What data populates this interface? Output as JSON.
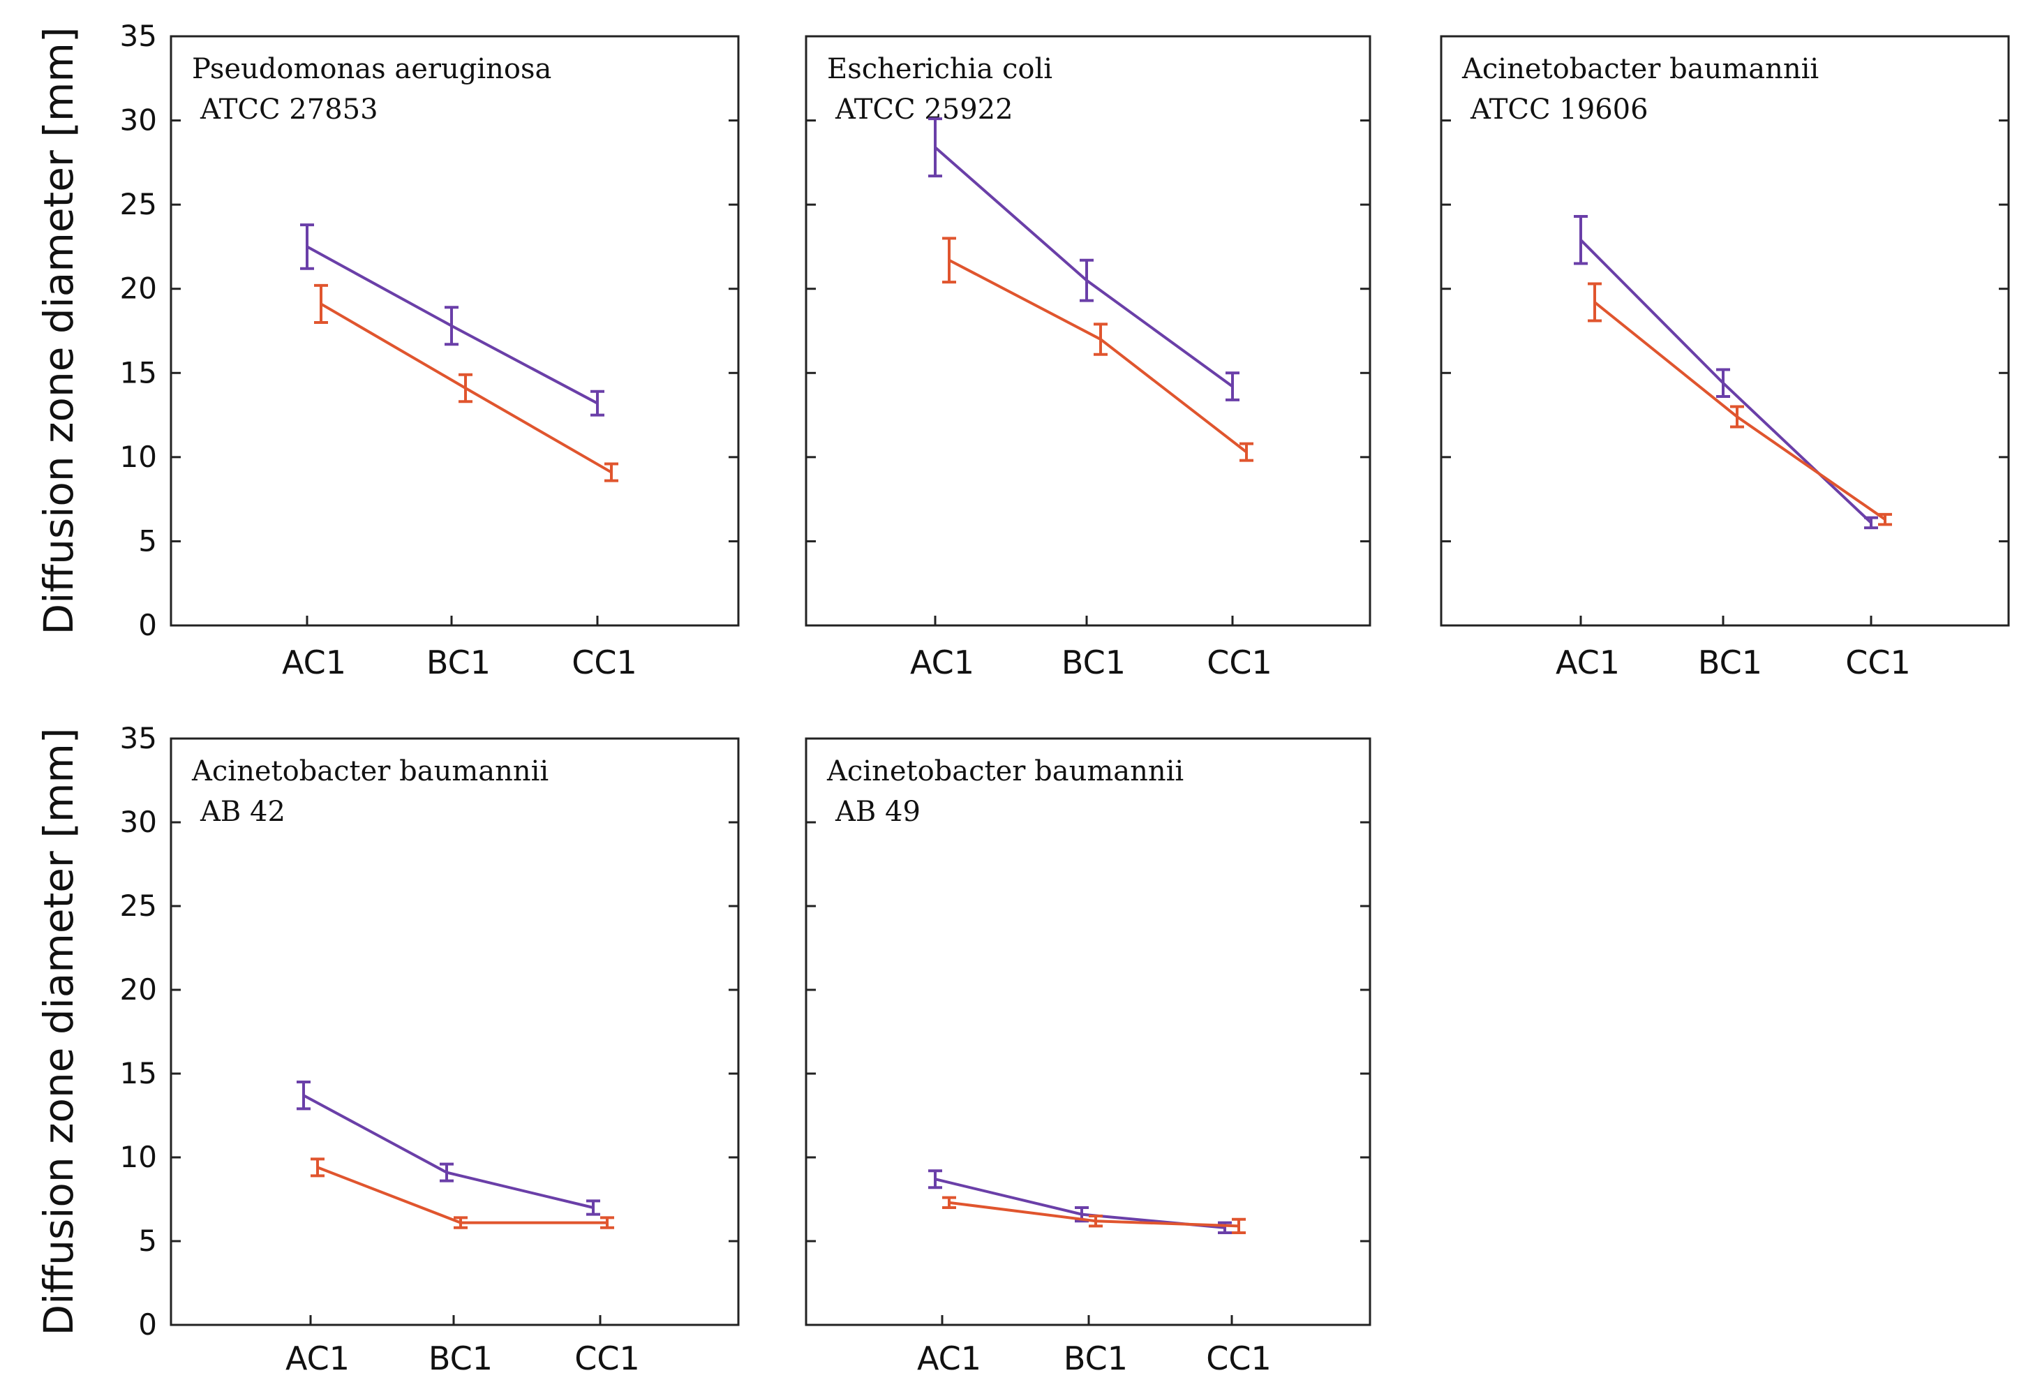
{
  "chart_data": {
    "type": "line",
    "ylabel": "Diffusion zone diameter [mm]",
    "ylim": [
      0,
      35
    ],
    "yticks": [
      0,
      5,
      10,
      15,
      20,
      25,
      30,
      35
    ],
    "categories": [
      "AC1",
      "BC1",
      "CC1"
    ],
    "colors": {
      "series_a": "#6a3fa8",
      "series_b": "#e0552e"
    },
    "panels": [
      {
        "title_line1": "Pseudomonas aeruginosa",
        "title_line2": "ATCC 27853",
        "series": [
          {
            "name": "series_a",
            "values": [
              22.5,
              17.8,
              13.2
            ],
            "errors": [
              1.3,
              1.1,
              0.7
            ]
          },
          {
            "name": "series_b",
            "values": [
              19.1,
              14.1,
              9.1
            ],
            "errors": [
              1.1,
              0.8,
              0.5
            ]
          }
        ]
      },
      {
        "title_line1": "Escherichia coli",
        "title_line2": "ATCC 25922",
        "series": [
          {
            "name": "series_a",
            "values": [
              28.4,
              20.5,
              14.2
            ],
            "errors": [
              1.7,
              1.2,
              0.8
            ]
          },
          {
            "name": "series_b",
            "values": [
              21.7,
              17.0,
              10.3
            ],
            "errors": [
              1.3,
              0.9,
              0.5
            ]
          }
        ]
      },
      {
        "title_line1": "Acinetobacter baumannii",
        "title_line2": "ATCC 19606",
        "series": [
          {
            "name": "series_a",
            "values": [
              22.9,
              14.4,
              6.1
            ],
            "errors": [
              1.4,
              0.8,
              0.3
            ]
          },
          {
            "name": "series_b",
            "values": [
              19.2,
              12.4,
              6.3
            ],
            "errors": [
              1.1,
              0.6,
              0.3
            ]
          }
        ]
      },
      {
        "title_line1": "Acinetobacter baumannii",
        "title_line2": "AB 42",
        "series": [
          {
            "name": "series_a",
            "values": [
              13.7,
              9.1,
              7.0
            ],
            "errors": [
              0.8,
              0.5,
              0.4
            ]
          },
          {
            "name": "series_b",
            "values": [
              9.4,
              6.1,
              6.1
            ],
            "errors": [
              0.5,
              0.3,
              0.3
            ]
          }
        ]
      },
      {
        "title_line1": "Acinetobacter baumannii",
        "title_line2": "AB 49",
        "series": [
          {
            "name": "series_a",
            "values": [
              8.7,
              6.6,
              5.8
            ],
            "errors": [
              0.5,
              0.4,
              0.3
            ]
          },
          {
            "name": "series_b",
            "values": [
              7.3,
              6.2,
              5.9
            ],
            "errors": [
              0.3,
              0.3,
              0.4
            ]
          }
        ]
      }
    ]
  }
}
